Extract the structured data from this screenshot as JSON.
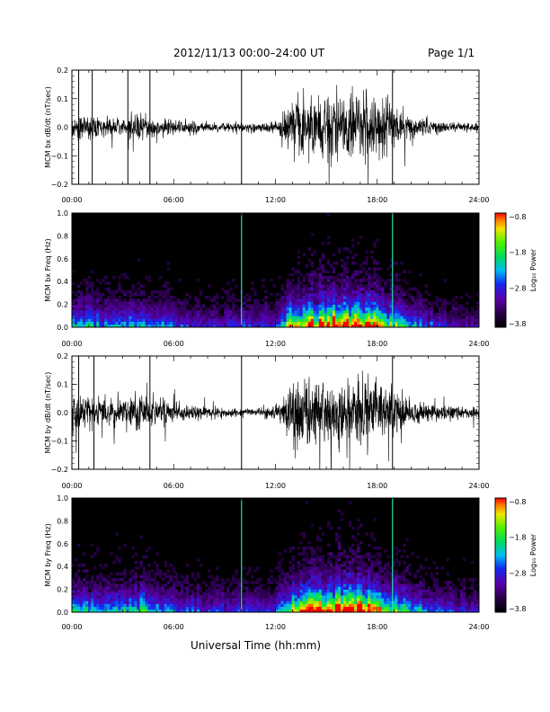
{
  "header": {
    "title": "2012/11/13  00:00–24:00 UT",
    "page": "Page 1/1"
  },
  "xaxis_title": "Universal Time (hh:mm)",
  "chart_data": [
    {
      "type": "line",
      "panel": "bx waveform",
      "ylabel": "MCM bx dB/dt (nT/sec)",
      "xlim": [
        0,
        24
      ],
      "ylim": [
        -0.2,
        0.2
      ],
      "x_ticks": [
        "00:00",
        "06:00",
        "12:00",
        "18:00",
        "24:00"
      ],
      "y_ticks": [
        "−0.2",
        "−0.1",
        "0.0",
        "0.1",
        "0.2"
      ],
      "envelope": {
        "x_hours": [
          0,
          1,
          2,
          3,
          4,
          5,
          6,
          7,
          8,
          9,
          10,
          11,
          12,
          12.5,
          13,
          14,
          15,
          16,
          17,
          18,
          19,
          20,
          21,
          22,
          23,
          24
        ],
        "amplitude": [
          0.08,
          0.07,
          0.06,
          0.06,
          0.09,
          0.06,
          0.05,
          0.04,
          0.03,
          0.03,
          0.03,
          0.03,
          0.04,
          0.08,
          0.2,
          0.22,
          0.22,
          0.22,
          0.22,
          0.2,
          0.12,
          0.07,
          0.05,
          0.04,
          0.03,
          0.03
        ]
      },
      "spikes_hours": [
        0.4,
        1.2,
        3.3,
        4.6,
        10.0,
        18.9
      ]
    },
    {
      "type": "heatmap",
      "panel": "bx spectrogram",
      "ylabel": "MCM bx Freq (Hz)",
      "xlim": [
        0,
        24
      ],
      "ylim": [
        0,
        1.0
      ],
      "x_ticks": [
        "00:00",
        "06:00",
        "12:00",
        "18:00",
        "24:00"
      ],
      "y_ticks": [
        "0.0",
        "0.2",
        "0.4",
        "0.6",
        "0.8",
        "1.0"
      ],
      "colorbar": {
        "label": "Log₁₀ Power",
        "ticks": [
          "−0.8",
          "−1.8",
          "−2.8",
          "−3.8"
        ],
        "range": [
          -3.8,
          -0.8
        ]
      },
      "activity": {
        "x_hours": [
          0,
          1,
          2,
          3,
          4,
          5,
          6,
          7,
          8,
          9,
          10,
          11,
          12,
          12.5,
          13,
          14,
          15,
          16,
          17,
          18,
          19,
          20,
          21,
          22,
          23,
          24
        ],
        "level": [
          0.45,
          0.4,
          0.35,
          0.35,
          0.45,
          0.35,
          0.3,
          0.28,
          0.25,
          0.25,
          0.25,
          0.25,
          0.3,
          0.45,
          0.75,
          0.8,
          0.85,
          0.9,
          0.95,
          0.8,
          0.55,
          0.4,
          0.3,
          0.25,
          0.2,
          0.2
        ]
      },
      "lines_hours": [
        10.0,
        18.9
      ]
    },
    {
      "type": "line",
      "panel": "by waveform",
      "ylabel": "MCM by dB/dt (nT/sec)",
      "xlim": [
        0,
        24
      ],
      "ylim": [
        -0.2,
        0.2
      ],
      "x_ticks": [
        "00:00",
        "06:00",
        "12:00",
        "18:00",
        "24:00"
      ],
      "y_ticks": [
        "−0.2",
        "−0.1",
        "0.0",
        "0.1",
        "0.2"
      ],
      "envelope": {
        "x_hours": [
          0,
          1,
          2,
          3,
          4,
          5,
          6,
          7,
          8,
          9,
          10,
          11,
          12,
          12.5,
          13,
          14,
          15,
          16,
          17,
          18,
          19,
          20,
          21,
          22,
          23,
          24
        ],
        "amplitude": [
          0.12,
          0.1,
          0.09,
          0.08,
          0.12,
          0.09,
          0.07,
          0.05,
          0.04,
          0.03,
          0.03,
          0.03,
          0.05,
          0.1,
          0.22,
          0.22,
          0.22,
          0.22,
          0.22,
          0.2,
          0.13,
          0.08,
          0.06,
          0.05,
          0.04,
          0.04
        ]
      },
      "spikes_hours": [
        0.4,
        1.3,
        4.6,
        10.0,
        18.9
      ]
    },
    {
      "type": "heatmap",
      "panel": "by spectrogram",
      "ylabel": "MCM by Freq (Hz)",
      "xlim": [
        0,
        24
      ],
      "ylim": [
        0,
        1.0
      ],
      "x_ticks": [
        "00:00",
        "06:00",
        "12:00",
        "18:00",
        "24:00"
      ],
      "y_ticks": [
        "0.0",
        "0.2",
        "0.4",
        "0.6",
        "0.8",
        "1.0"
      ],
      "colorbar": {
        "label": "Log₁₀ Power",
        "ticks": [
          "−0.8",
          "−1.8",
          "−2.8",
          "−3.8"
        ],
        "range": [
          -3.8,
          -0.8
        ]
      },
      "activity": {
        "x_hours": [
          0,
          1,
          2,
          3,
          4,
          5,
          6,
          7,
          8,
          9,
          10,
          11,
          12,
          12.5,
          13,
          14,
          15,
          16,
          17,
          18,
          19,
          20,
          21,
          22,
          23,
          24
        ],
        "level": [
          0.5,
          0.45,
          0.4,
          0.4,
          0.5,
          0.4,
          0.35,
          0.3,
          0.3,
          0.28,
          0.28,
          0.28,
          0.32,
          0.5,
          0.8,
          0.85,
          0.9,
          0.92,
          0.95,
          0.85,
          0.6,
          0.45,
          0.35,
          0.3,
          0.25,
          0.25
        ]
      },
      "lines_hours": [
        10.0,
        18.9
      ]
    }
  ]
}
